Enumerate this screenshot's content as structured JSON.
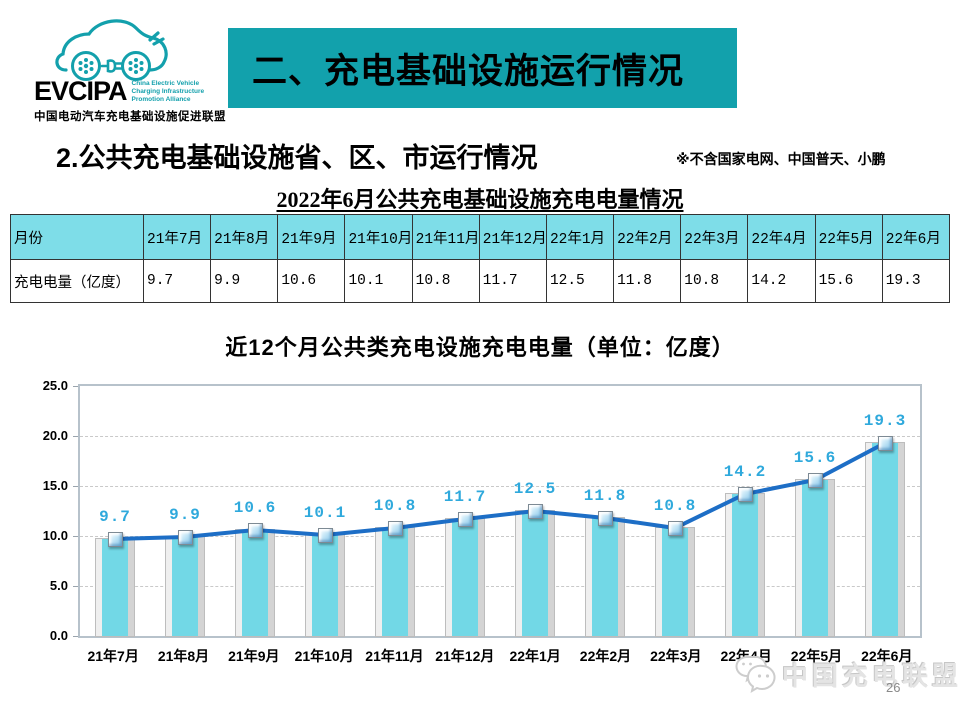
{
  "page": {
    "banner_title": "二、充电基础设施运行情况",
    "section_title": "2.公共充电基础设施省、区、市运行情况",
    "note": "※不含国家电网、中国普天、小鹏",
    "table_title": "2022年6月公共充电基础设施充电电量情况",
    "page_number": "26"
  },
  "logo": {
    "name": "EVCIPA",
    "tagline_lines": [
      "China Electric Vehicle",
      "Charging Infrastructure",
      "Promotion Alliance"
    ],
    "chinese_name": "中国电动汽车充电基础设施促进联盟",
    "brand_color": "#13a0ac"
  },
  "table": {
    "columns": [
      "月份",
      "21年7月",
      "21年8月",
      "21年9月",
      "21年10月",
      "21年11月",
      "21年12月",
      "22年1月",
      "22年2月",
      "22年3月",
      "22年4月",
      "22年5月",
      "22年6月"
    ],
    "row_label": "充电电量（亿度）",
    "values": [
      "9.7",
      "9.9",
      "10.6",
      "10.1",
      "10.8",
      "11.7",
      "12.5",
      "11.8",
      "10.8",
      "14.2",
      "15.6",
      "19.3"
    ],
    "header_bg": "#7edde8"
  },
  "chart_data": {
    "type": "bar",
    "subtype": "bar-with-line-overlay",
    "title": "近12个月公共类充电设施充电电量（单位：亿度）",
    "categories": [
      "21年7月",
      "21年8月",
      "21年9月",
      "21年10月",
      "21年11月",
      "21年12月",
      "22年1月",
      "22年2月",
      "22年3月",
      "22年4月",
      "22年5月",
      "22年6月"
    ],
    "values": [
      9.7,
      9.9,
      10.6,
      10.1,
      10.8,
      11.7,
      12.5,
      11.8,
      10.8,
      14.2,
      15.6,
      19.3
    ],
    "value_labels": [
      "9.7",
      "9.9",
      "10.6",
      "10.1",
      "10.8",
      "11.7",
      "12.5",
      "11.8",
      "10.8",
      "14.2",
      "15.6",
      "19.3"
    ],
    "xlabel": "",
    "ylabel": "",
    "ylim": [
      0,
      25
    ],
    "yticks": [
      0,
      5,
      10,
      15,
      20,
      25
    ],
    "ytick_labels": [
      "0.0",
      "5.0",
      "10.0",
      "15.0",
      "20.0",
      "25.0"
    ],
    "grid": "horizontal-dashed",
    "legend_position": "none",
    "bar_color": "#72d8e6",
    "line_color": "#1d6ec6",
    "value_label_color": "#2fa9dc"
  },
  "footer": {
    "watermark": "中国充电联盟",
    "watermark_icon": "wechat-bubbles-icon"
  }
}
